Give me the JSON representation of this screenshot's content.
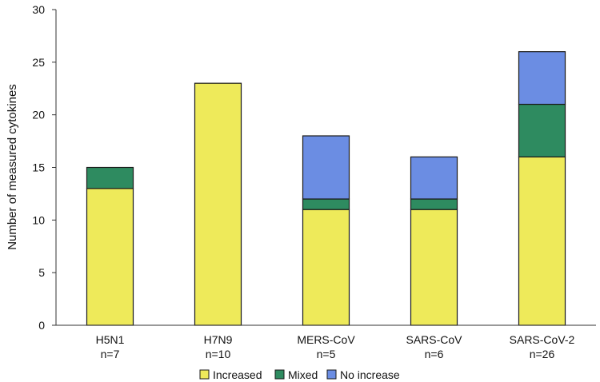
{
  "chart_data": {
    "type": "bar",
    "stacked": true,
    "title": "",
    "xlabel": "",
    "ylabel": "Number of measured cytokines",
    "ylim": [
      0,
      30
    ],
    "yticks": [
      0,
      5,
      10,
      15,
      20,
      25,
      30
    ],
    "categories": [
      {
        "name": "H5N1",
        "n": "n=7"
      },
      {
        "name": "H7N9",
        "n": "n=10"
      },
      {
        "name": "MERS-CoV",
        "n": "n=5"
      },
      {
        "name": "SARS-CoV",
        "n": "n=6"
      },
      {
        "name": "SARS-CoV-2",
        "n": "n=26"
      }
    ],
    "series": [
      {
        "name": "Increased",
        "color": "#eeea5a",
        "values": [
          13,
          23,
          11,
          11,
          16
        ]
      },
      {
        "name": "Mixed",
        "color": "#2e8b60",
        "values": [
          2,
          0,
          1,
          1,
          5
        ]
      },
      {
        "name": "No increase",
        "color": "#6b8de3",
        "values": [
          0,
          0,
          6,
          4,
          5
        ]
      }
    ],
    "legend_position": "bottom-center",
    "grid": false
  }
}
